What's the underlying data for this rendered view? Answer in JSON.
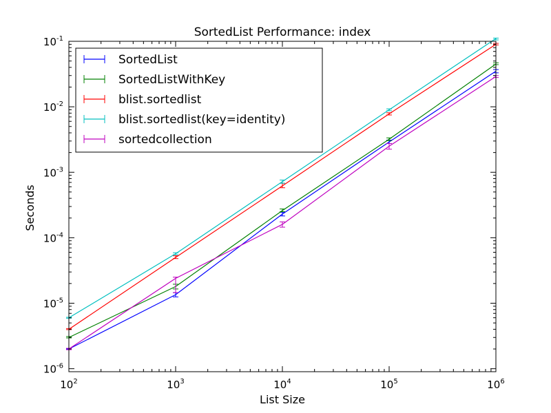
{
  "chart_data": {
    "type": "line",
    "title": "SortedList Performance: index",
    "xlabel": "List Size",
    "ylabel": "Seconds",
    "xscale": "log",
    "yscale": "log",
    "xlim": [
      100,
      1000000
    ],
    "ylim": [
      9e-07,
      0.1
    ],
    "x_ticks": [
      {
        "value": 100,
        "base": "10",
        "exp": "2"
      },
      {
        "value": 1000,
        "base": "10",
        "exp": "3"
      },
      {
        "value": 10000,
        "base": "10",
        "exp": "4"
      },
      {
        "value": 100000,
        "base": "10",
        "exp": "5"
      },
      {
        "value": 1000000,
        "base": "10",
        "exp": "6"
      }
    ],
    "y_ticks": [
      {
        "value": 1e-06,
        "base": "10",
        "exp": "-6"
      },
      {
        "value": 1e-05,
        "base": "10",
        "exp": "-5"
      },
      {
        "value": 0.0001,
        "base": "10",
        "exp": "-4"
      },
      {
        "value": 0.001,
        "base": "10",
        "exp": "-3"
      },
      {
        "value": 0.01,
        "base": "10",
        "exp": "-2"
      },
      {
        "value": 0.1,
        "base": "10",
        "exp": "-1"
      }
    ],
    "legend_position": "upper-left",
    "x": [
      100,
      1000,
      10000,
      100000,
      1000000
    ],
    "series": [
      {
        "name": "SortedList",
        "color": "#0000ff",
        "values": [
          2e-06,
          1.35e-05,
          0.00023,
          0.0029,
          0.035
        ],
        "err_low": [
          2e-06,
          1.25e-05,
          0.000215,
          0.00275,
          0.033
        ],
        "err_high": [
          2.05e-06,
          1.45e-05,
          0.000245,
          0.0031,
          0.037
        ]
      },
      {
        "name": "SortedListWithKey",
        "color": "#008000",
        "values": [
          3e-06,
          1.8e-05,
          0.00026,
          0.0032,
          0.045
        ],
        "err_low": [
          2.95e-06,
          1.65e-05,
          0.00025,
          0.00305,
          0.044
        ],
        "err_high": [
          3.1e-06,
          1.95e-05,
          0.000275,
          0.00335,
          0.047
        ]
      },
      {
        "name": "blist.sortedlist",
        "color": "#ff0000",
        "values": [
          4e-06,
          5e-05,
          0.00062,
          0.0078,
          0.09
        ],
        "err_low": [
          3.95e-06,
          4.8e-05,
          0.00058,
          0.0075,
          0.088
        ],
        "err_high": [
          4.1e-06,
          5.3e-05,
          0.00068,
          0.0081,
          0.093
        ]
      },
      {
        "name": "blist.sortedlist(key=identity)",
        "color": "#00bfbf",
        "values": [
          6e-06,
          5.7e-05,
          0.00072,
          0.009,
          0.11
        ],
        "err_low": [
          5.9e-06,
          5.5e-05,
          0.00068,
          0.0087,
          0.105
        ],
        "err_high": [
          6.1e-06,
          5.9e-05,
          0.00076,
          0.0093,
          0.112
        ]
      },
      {
        "name": "sortedcollection",
        "color": "#bf00bf",
        "values": [
          2e-06,
          2.4e-05,
          0.00016,
          0.0025,
          0.029
        ],
        "err_low": [
          1.95e-06,
          1.45e-05,
          0.000145,
          0.00225,
          0.028
        ],
        "err_high": [
          2.05e-06,
          2.5e-05,
          0.000175,
          0.00275,
          0.03
        ]
      }
    ]
  }
}
